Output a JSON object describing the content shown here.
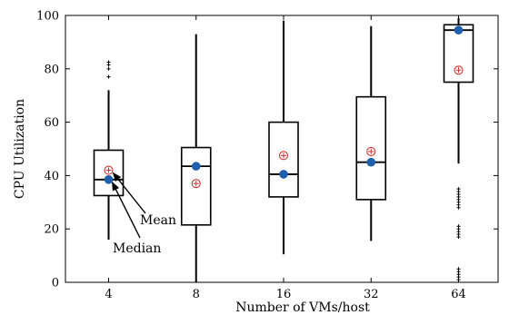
{
  "chart_data": {
    "type": "box",
    "title": "",
    "xlabel": "Number of VMs/host",
    "ylabel": "CPU Utilization",
    "ylim": [
      0,
      100
    ],
    "yticks": [
      0,
      20,
      40,
      60,
      80,
      100
    ],
    "grid": false,
    "categories": [
      "4",
      "8",
      "16",
      "32",
      "64"
    ],
    "boxes": [
      {
        "category": "4",
        "whisker_low": 16,
        "q1": 32.5,
        "median": 38.5,
        "q3": 49.5,
        "whisker_high": 72,
        "mean": 42,
        "median_marker": 38.5,
        "outliers": [
          77,
          80,
          81.5,
          82.5
        ]
      },
      {
        "category": "8",
        "whisker_low": 0,
        "q1": 21.5,
        "median": 43.5,
        "q3": 50.5,
        "whisker_high": 93,
        "mean": 37,
        "median_marker": 43.5,
        "outliers": []
      },
      {
        "category": "16",
        "whisker_low": 10.5,
        "q1": 32,
        "median": 40.5,
        "q3": 60,
        "whisker_high": 98,
        "mean": 47.5,
        "median_marker": 40.5,
        "outliers": []
      },
      {
        "category": "32",
        "whisker_low": 15.5,
        "q1": 31,
        "median": 45,
        "q3": 69.5,
        "whisker_high": 96,
        "mean": 49,
        "median_marker": 45,
        "outliers": []
      },
      {
        "category": "64",
        "whisker_low": 44.5,
        "q1": 75,
        "median": 94.5,
        "q3": 96.5,
        "whisker_high": 99,
        "mean": 79.5,
        "median_marker": 94.5,
        "outliers": [
          1,
          2,
          3,
          4,
          5,
          17,
          18,
          19,
          20,
          21,
          28,
          29,
          30,
          31,
          32,
          33,
          34,
          35
        ]
      }
    ],
    "annotations": [
      {
        "text": "Mean",
        "target": "4",
        "target_series": "mean"
      },
      {
        "text": "Median",
        "target": "4",
        "target_series": "median_marker"
      }
    ],
    "colors": {
      "box": "#000000",
      "median_dot": "#1f5fad",
      "mean_marker": "#d32f2f"
    }
  }
}
